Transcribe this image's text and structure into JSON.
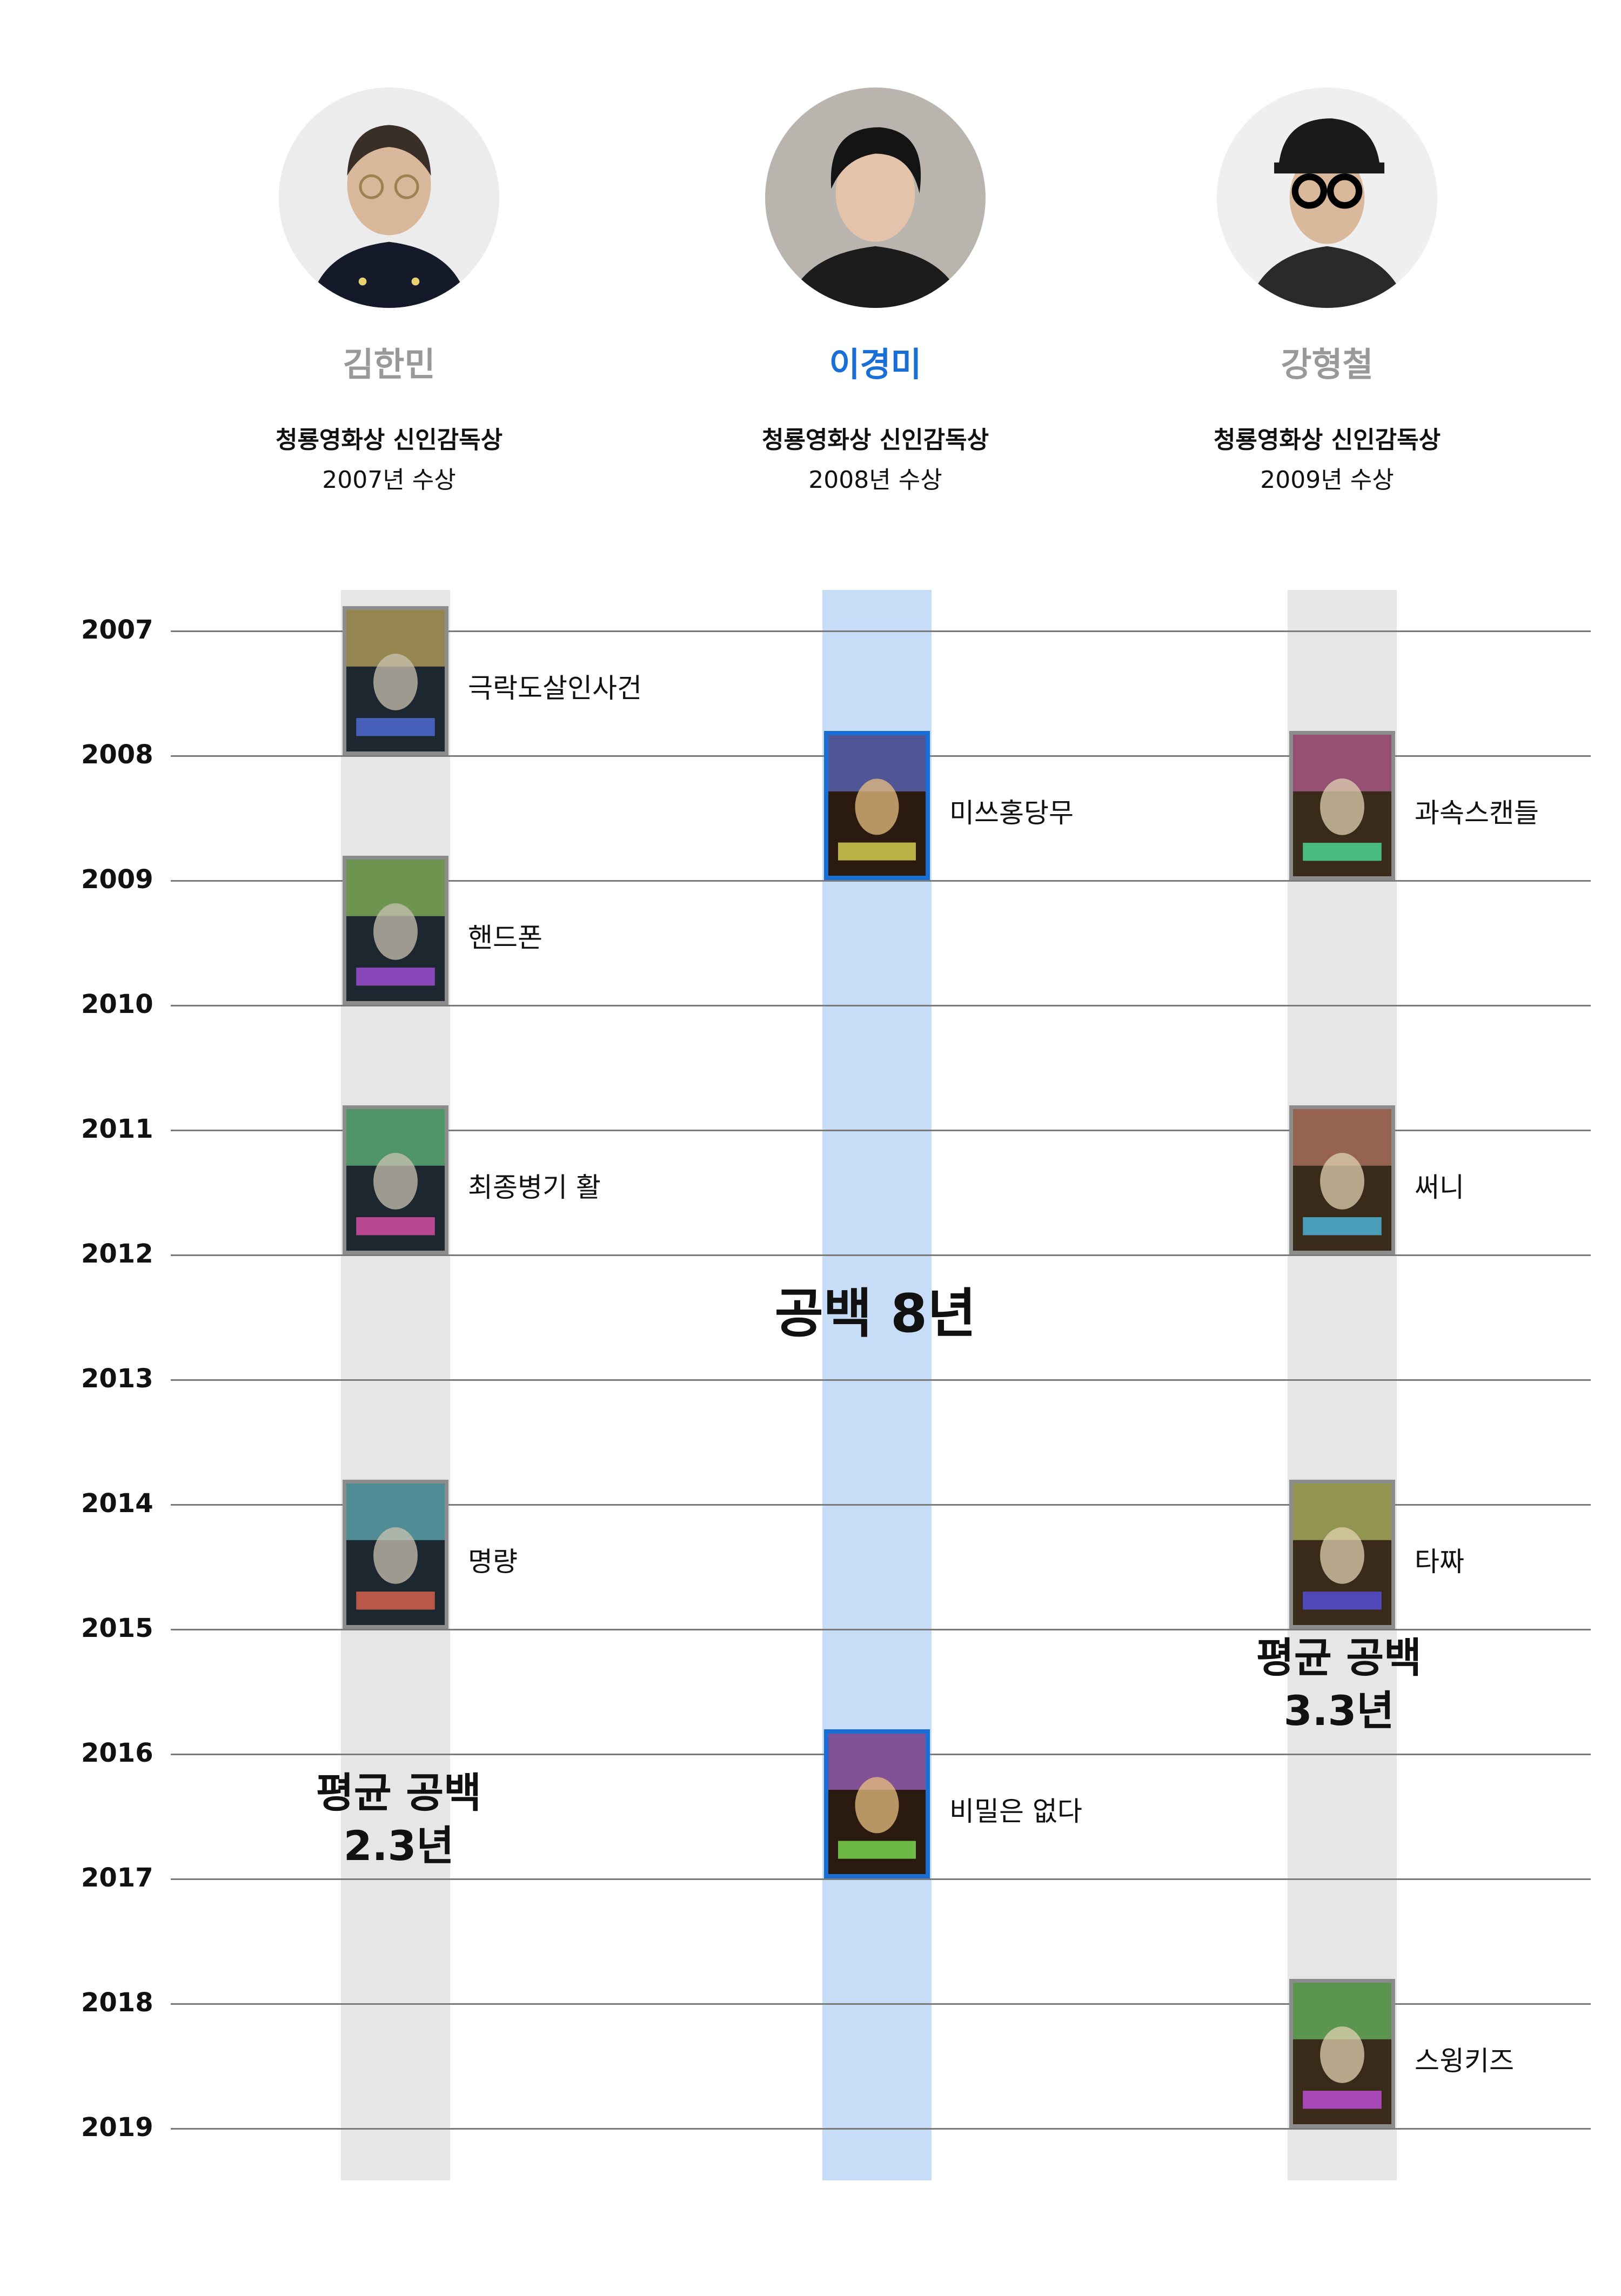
{
  "directors": [
    {
      "name": "김한민",
      "award": "청룡영화상 신인감독상",
      "award_year": "2007년 수상",
      "name_color": "#999999"
    },
    {
      "name": "이경미",
      "award": "청룡영화상 신인감독상",
      "award_year": "2008년 수상",
      "name_color": "#1a6fd6"
    },
    {
      "name": "강형철",
      "award": "청룡영화상 신인감독상",
      "award_year": "2009년 수상",
      "name_color": "#999999"
    }
  ],
  "colors": {
    "gray_band": "#e6e6e6",
    "blue_band": "#c7dcf7",
    "blue_border": "#1a6fd6",
    "gray_border": "#8c8c8c"
  },
  "chart_data": {
    "type": "timeline",
    "years": [
      "2007",
      "2008",
      "2009",
      "2010",
      "2011",
      "2012",
      "2013",
      "2014",
      "2015",
      "2016",
      "2017",
      "2018",
      "2019"
    ],
    "columns": [
      {
        "director": "김한민",
        "films": [
          {
            "title": "극락도살인사건",
            "year": 2007
          },
          {
            "title": "핸드폰",
            "year": 2009
          },
          {
            "title": "최종병기 활",
            "year": 2011
          },
          {
            "title": "명량",
            "year": 2014
          }
        ],
        "gap_label": [
          "평균 공백",
          "2.3년"
        ]
      },
      {
        "director": "이경미",
        "films": [
          {
            "title": "미쓰홍당무",
            "year": 2008
          },
          {
            "title": "비밀은 없다",
            "year": 2016
          }
        ],
        "gap_label": [
          "공백 8년"
        ]
      },
      {
        "director": "강형철",
        "films": [
          {
            "title": "과속스캔들",
            "year": 2008
          },
          {
            "title": "써니",
            "year": 2011
          },
          {
            "title": "타짜",
            "year": 2014
          },
          {
            "title": "스윙키즈",
            "year": 2018
          }
        ],
        "gap_label": [
          "평균 공백",
          "3.3년"
        ]
      }
    ]
  }
}
